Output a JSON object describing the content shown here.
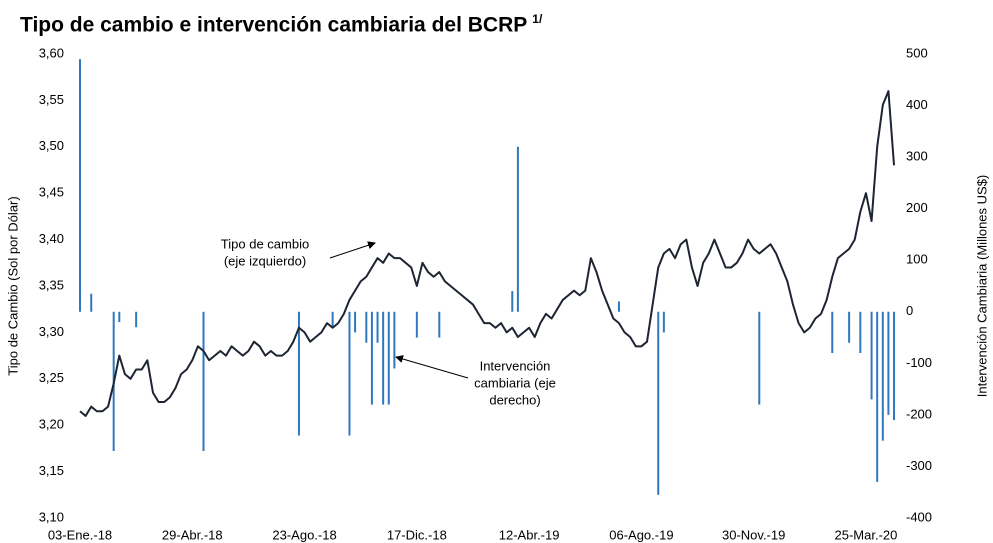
{
  "chart_data": {
    "type": "combo",
    "title": "Tipo de cambio e intervención cambiaria del BCRP",
    "title_note": "1/",
    "ylabel": "Tipo de Cambio (Sol por Dólar)",
    "y2label": "Intervención Cambiaria (Millones US$)",
    "annotations": [
      {
        "lines": [
          "Tipo de cambio",
          "(eje izquierdo)"
        ]
      },
      {
        "lines": [
          "Intervención",
          "cambiaria (eje",
          "derecho)"
        ]
      }
    ],
    "categories": [
      "03-Ene.-18",
      null,
      null,
      null,
      null,
      null,
      null,
      null,
      null,
      null,
      null,
      null,
      null,
      null,
      null,
      null,
      null,
      null,
      null,
      null,
      "29-Abr.-18",
      null,
      null,
      null,
      null,
      null,
      null,
      null,
      null,
      null,
      null,
      null,
      null,
      null,
      null,
      null,
      null,
      null,
      null,
      null,
      "23-Ago.-18",
      null,
      null,
      null,
      null,
      null,
      null,
      null,
      null,
      null,
      null,
      null,
      null,
      null,
      null,
      null,
      null,
      null,
      null,
      null,
      "17-Dic.-18",
      null,
      null,
      null,
      null,
      null,
      null,
      null,
      null,
      null,
      null,
      null,
      null,
      null,
      null,
      null,
      null,
      null,
      null,
      null,
      "12-Abr.-19",
      null,
      null,
      null,
      null,
      null,
      null,
      null,
      null,
      null,
      null,
      null,
      null,
      null,
      null,
      null,
      null,
      null,
      null,
      null,
      "06-Ago.-19",
      null,
      null,
      null,
      null,
      null,
      null,
      null,
      null,
      null,
      null,
      null,
      null,
      null,
      null,
      null,
      null,
      null,
      null,
      null,
      "30-Nov.-19",
      null,
      null,
      null,
      null,
      null,
      null,
      null,
      null,
      null,
      null,
      null,
      null,
      null,
      null,
      null,
      null,
      null,
      null,
      null,
      "25-Mar.-20",
      null,
      null,
      null,
      null,
      null
    ],
    "series": [
      {
        "type": "bar",
        "axis": "y2",
        "color": "#2f78bd",
        "values": [
          490,
          null,
          35,
          null,
          null,
          null,
          -270,
          -20,
          null,
          null,
          -30,
          null,
          null,
          null,
          null,
          null,
          null,
          null,
          null,
          null,
          null,
          null,
          -270,
          null,
          null,
          null,
          null,
          null,
          null,
          null,
          null,
          null,
          null,
          null,
          null,
          null,
          null,
          null,
          null,
          -240,
          null,
          null,
          null,
          null,
          null,
          -30,
          null,
          null,
          -240,
          -40,
          null,
          -60,
          -180,
          -60,
          -180,
          -180,
          -110,
          null,
          null,
          null,
          -50,
          null,
          null,
          null,
          -50,
          null,
          null,
          null,
          null,
          null,
          null,
          null,
          null,
          null,
          null,
          null,
          null,
          40,
          320,
          null,
          null,
          null,
          null,
          null,
          null,
          null,
          null,
          null,
          null,
          null,
          null,
          null,
          null,
          null,
          null,
          null,
          20,
          null,
          null,
          null,
          null,
          null,
          null,
          -355,
          -40,
          null,
          null,
          null,
          null,
          null,
          null,
          null,
          null,
          null,
          null,
          null,
          null,
          null,
          null,
          null,
          null,
          -180,
          null,
          null,
          null,
          null,
          null,
          null,
          null,
          null,
          null,
          null,
          null,
          null,
          -80,
          null,
          null,
          -60,
          null,
          -80,
          null,
          -170,
          -330,
          -250,
          -200,
          -210
        ]
      },
      {
        "type": "line",
        "axis": "y",
        "color": "#1e2532",
        "values": [
          3.215,
          3.21,
          3.22,
          3.215,
          3.215,
          3.22,
          3.245,
          3.275,
          3.255,
          3.25,
          3.26,
          3.26,
          3.27,
          3.235,
          3.225,
          3.225,
          3.23,
          3.24,
          3.255,
          3.26,
          3.27,
          3.285,
          3.28,
          3.27,
          3.275,
          3.28,
          3.275,
          3.285,
          3.28,
          3.275,
          3.28,
          3.29,
          3.285,
          3.275,
          3.28,
          3.275,
          3.275,
          3.28,
          3.29,
          3.305,
          3.3,
          3.29,
          3.295,
          3.3,
          3.31,
          3.305,
          3.31,
          3.32,
          3.335,
          3.345,
          3.355,
          3.36,
          3.37,
          3.38,
          3.375,
          3.385,
          3.38,
          3.38,
          3.375,
          3.37,
          3.35,
          3.375,
          3.365,
          3.36,
          3.365,
          3.355,
          3.35,
          3.345,
          3.34,
          3.335,
          3.33,
          3.32,
          3.31,
          3.31,
          3.305,
          3.31,
          3.3,
          3.305,
          3.295,
          3.3,
          3.305,
          3.295,
          3.31,
          3.32,
          3.315,
          3.325,
          3.335,
          3.34,
          3.345,
          3.34,
          3.345,
          3.38,
          3.365,
          3.345,
          3.33,
          3.315,
          3.31,
          3.3,
          3.295,
          3.285,
          3.285,
          3.29,
          3.33,
          3.37,
          3.385,
          3.39,
          3.38,
          3.395,
          3.4,
          3.37,
          3.35,
          3.375,
          3.385,
          3.4,
          3.385,
          3.37,
          3.37,
          3.375,
          3.385,
          3.4,
          3.39,
          3.385,
          3.39,
          3.395,
          3.385,
          3.37,
          3.355,
          3.33,
          3.31,
          3.3,
          3.305,
          3.315,
          3.32,
          3.335,
          3.36,
          3.38,
          3.385,
          3.39,
          3.4,
          3.43,
          3.45,
          3.42,
          3.5,
          3.545,
          3.56,
          3.48
        ]
      }
    ],
    "ylim": [
      3.1,
      3.6
    ],
    "yticks": [
      {
        "value": 3.1,
        "label": "3,10"
      },
      {
        "value": 3.15,
        "label": "3,15"
      },
      {
        "value": 3.2,
        "label": "3,20"
      },
      {
        "value": 3.25,
        "label": "3,25"
      },
      {
        "value": 3.3,
        "label": "3,30"
      },
      {
        "value": 3.35,
        "label": "3,35"
      },
      {
        "value": 3.4,
        "label": "3,40"
      },
      {
        "value": 3.45,
        "label": "3,45"
      },
      {
        "value": 3.5,
        "label": "3,50"
      },
      {
        "value": 3.55,
        "label": "3,55"
      },
      {
        "value": 3.6,
        "label": "3,60"
      }
    ],
    "y2lim": [
      -400,
      500
    ],
    "y2ticks": [
      -400,
      -300,
      -200,
      -100,
      0,
      100,
      200,
      300,
      400,
      500
    ],
    "grid": false
  }
}
